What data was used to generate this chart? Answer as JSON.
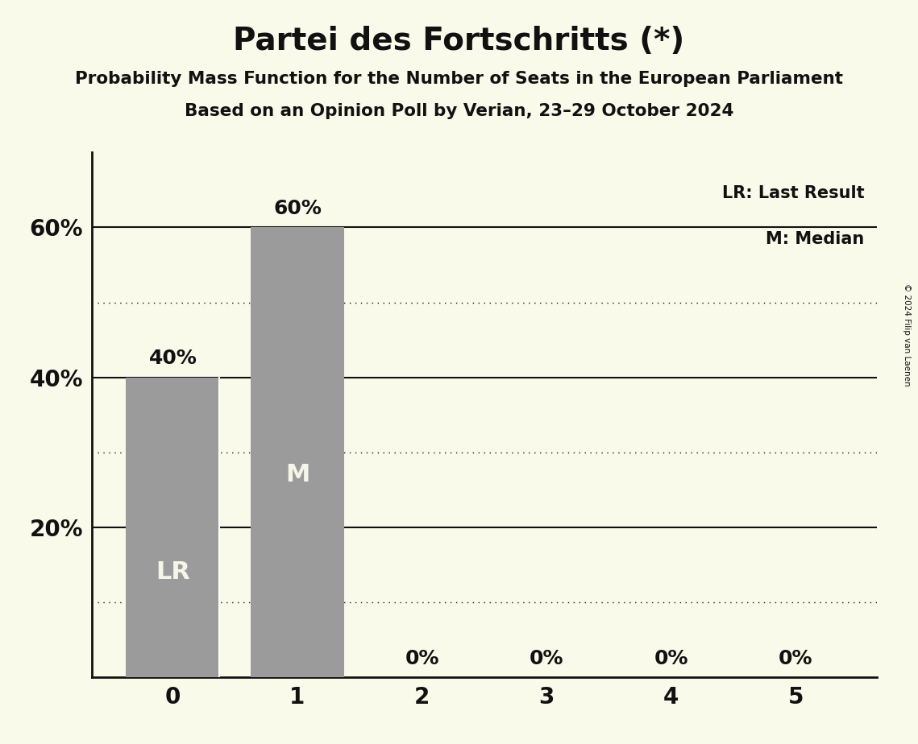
{
  "title": "Partei des Fortschritts (*)",
  "subtitle1": "Probability Mass Function for the Number of Seats in the European Parliament",
  "subtitle2": "Based on an Opinion Poll by Verian, 23–29 October 2024",
  "copyright": "© 2024 Filip van Laenen",
  "x_values": [
    0,
    1,
    2,
    3,
    4,
    5
  ],
  "y_values": [
    0.4,
    0.6,
    0.0,
    0.0,
    0.0,
    0.0
  ],
  "bar_color": "#9b9b9b",
  "background_color": "#fafaeb",
  "lr_seat": 0,
  "median_seat": 1,
  "ylabel_solid": [
    0.2,
    0.4,
    0.6
  ],
  "ylabel_dotted": [
    0.1,
    0.3,
    0.5
  ],
  "ylim": [
    0,
    0.7
  ],
  "legend_lr": "LR: Last Result",
  "legend_m": "M: Median",
  "bar_width": 0.75,
  "title_fontsize": 28,
  "subtitle_fontsize": 15.5,
  "axis_tick_fontsize": 20,
  "bar_label_fontsize": 18,
  "legend_fontsize": 15,
  "grid_color": "#111111",
  "text_color": "#111111",
  "white_line_color": "#ffffff",
  "lr_label_color": "#f5f5e8",
  "m_label_color": "#f5f5e8"
}
